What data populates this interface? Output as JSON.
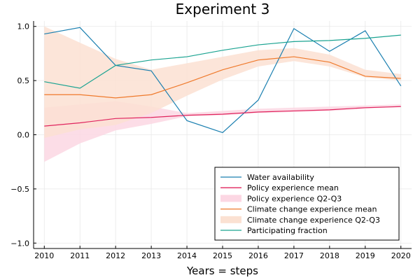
{
  "chart_data": {
    "type": "line",
    "title": "Experiment 3",
    "xlabel": "Years = steps",
    "ylabel": "",
    "x": [
      2010,
      2011,
      2012,
      2013,
      2014,
      2015,
      2016,
      2017,
      2018,
      2019,
      2020
    ],
    "xlim": [
      2009.7,
      2020.3
    ],
    "ylim": [
      -1.05,
      1.05
    ],
    "x_ticks": [
      "2010",
      "2011",
      "2012",
      "2013",
      "2014",
      "2015",
      "2016",
      "2017",
      "2018",
      "2019",
      "2020"
    ],
    "y_ticks": [
      {
        "value": 1.0,
        "label": "1.0"
      },
      {
        "value": 0.5,
        "label": "0.5"
      },
      {
        "value": 0.0,
        "label": "0.0"
      },
      {
        "value": -0.5,
        "label": "−0.5"
      },
      {
        "value": -1.0,
        "label": "−1.0"
      }
    ],
    "grid": true,
    "legend_position": "bottom-right",
    "bands": [
      {
        "name": "Policy experience Q2-Q3",
        "color": "#fcd7e3",
        "lower": [
          -0.25,
          -0.08,
          0.04,
          0.1,
          0.17,
          0.18,
          0.2,
          0.21,
          0.22,
          0.24,
          0.26
        ],
        "upper": [
          0.25,
          0.28,
          0.31,
          0.26,
          0.2,
          0.22,
          0.24,
          0.25,
          0.26,
          0.27,
          0.28
        ]
      },
      {
        "name": "Climate change experience Q2-Q3",
        "color": "#fbe1d2",
        "lower": [
          -0.03,
          0.05,
          0.09,
          0.2,
          0.36,
          0.51,
          0.63,
          0.68,
          0.63,
          0.53,
          0.5
        ],
        "upper": [
          1.0,
          0.85,
          0.7,
          0.6,
          0.66,
          0.72,
          0.78,
          0.8,
          0.74,
          0.6,
          0.56
        ]
      }
    ],
    "series": [
      {
        "name": "Water availability",
        "color": "#1a7fb0",
        "values": [
          0.93,
          0.99,
          0.64,
          0.59,
          0.13,
          0.02,
          0.32,
          0.98,
          0.77,
          0.96,
          0.45
        ]
      },
      {
        "name": "Policy experience mean",
        "color": "#e0245e",
        "values": [
          0.08,
          0.11,
          0.15,
          0.16,
          0.18,
          0.19,
          0.21,
          0.22,
          0.23,
          0.25,
          0.26
        ]
      },
      {
        "name": "Climate change experience mean",
        "color": "#ef7a2c",
        "values": [
          0.37,
          0.37,
          0.34,
          0.37,
          0.48,
          0.6,
          0.69,
          0.72,
          0.67,
          0.54,
          0.52
        ]
      },
      {
        "name": "Participating fraction",
        "color": "#1aa391",
        "values": [
          0.49,
          0.43,
          0.64,
          0.69,
          0.72,
          0.78,
          0.83,
          0.86,
          0.87,
          0.89,
          0.92
        ]
      }
    ],
    "legend": [
      {
        "label": "Water availability",
        "kind": "line",
        "color": "#1a7fb0"
      },
      {
        "label": "Policy experience mean",
        "kind": "line",
        "color": "#e0245e"
      },
      {
        "label": "Policy experience Q2-Q3",
        "kind": "band",
        "color": "#fcd7e3"
      },
      {
        "label": "Climate change experience mean",
        "kind": "line",
        "color": "#ef7a2c"
      },
      {
        "label": "Climate change experience Q2-Q3",
        "kind": "band",
        "color": "#fbe1d2"
      },
      {
        "label": "Participating fraction",
        "kind": "line",
        "color": "#1aa391"
      }
    ]
  }
}
